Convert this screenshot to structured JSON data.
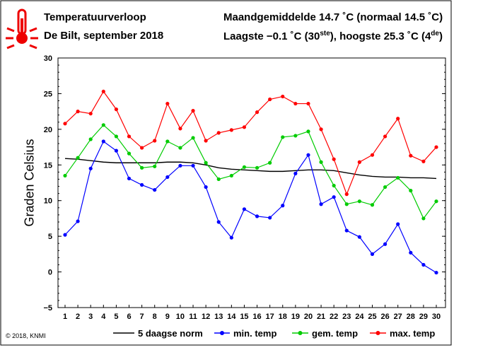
{
  "header": {
    "title": "Temperatuurverloop",
    "subtitle": "De Bilt, september 2018",
    "stats_line1": "Maandgemiddelde 14.7 ˚C (normaal 14.5 ˚C)",
    "stats_line2_prefix": "Laagste −0.1 ˚C (30",
    "stats_line2_sup1": "ste",
    "stats_line2_mid": "), hoogste 25.3 ˚C (4",
    "stats_line2_sup2": "de",
    "stats_line2_suffix": ")"
  },
  "copyright": "© 2018, KNMI",
  "icon": "thermometer-icon",
  "colors": {
    "min": "#0000ff",
    "gem": "#00cc00",
    "max": "#ff0000",
    "norm": "#000000"
  },
  "chart_data": {
    "type": "line",
    "ylabel": "Graden Celsius",
    "ylim": [
      -5,
      30
    ],
    "yticks": [
      -5,
      0,
      5,
      10,
      15,
      20,
      25,
      30
    ],
    "x": [
      1,
      2,
      3,
      4,
      5,
      6,
      7,
      8,
      9,
      10,
      11,
      12,
      13,
      14,
      15,
      16,
      17,
      18,
      19,
      20,
      21,
      22,
      23,
      24,
      25,
      26,
      27,
      28,
      29,
      30
    ],
    "series": [
      {
        "name": "5 daagse norm",
        "key": "norm",
        "markers": false,
        "values": [
          15.9,
          15.8,
          15.6,
          15.4,
          15.3,
          15.3,
          15.3,
          15.3,
          15.4,
          15.4,
          15.3,
          15.0,
          14.6,
          14.4,
          14.3,
          14.2,
          14.1,
          14.1,
          14.2,
          14.3,
          14.3,
          14.2,
          13.9,
          13.6,
          13.4,
          13.3,
          13.3,
          13.2,
          13.2,
          13.1
        ]
      },
      {
        "name": "min. temp",
        "key": "min",
        "markers": true,
        "values": [
          5.2,
          7.1,
          14.5,
          18.3,
          17.0,
          13.1,
          12.2,
          11.5,
          13.3,
          14.9,
          14.9,
          11.9,
          7.0,
          4.8,
          8.8,
          7.8,
          7.6,
          9.3,
          13.8,
          16.4,
          9.5,
          10.5,
          5.8,
          4.9,
          2.5,
          3.9,
          6.7,
          2.7,
          1.0,
          -0.1
        ]
      },
      {
        "name": "gem. temp",
        "key": "gem",
        "markers": true,
        "values": [
          13.5,
          16.0,
          18.6,
          20.6,
          19.0,
          16.6,
          14.6,
          14.8,
          18.3,
          17.4,
          18.8,
          15.3,
          13.0,
          13.5,
          14.7,
          14.6,
          15.3,
          18.9,
          19.1,
          19.7,
          15.4,
          12.1,
          9.5,
          9.9,
          9.4,
          11.9,
          13.2,
          11.4,
          7.5,
          9.9
        ]
      },
      {
        "name": "max. temp",
        "key": "max",
        "markers": true,
        "values": [
          20.8,
          22.5,
          22.2,
          25.3,
          22.8,
          19.0,
          17.4,
          18.4,
          23.6,
          20.1,
          22.6,
          18.4,
          19.5,
          19.9,
          20.3,
          22.4,
          24.2,
          24.6,
          23.6,
          23.6,
          20.0,
          15.8,
          10.9,
          15.4,
          16.4,
          19.0,
          21.5,
          16.3,
          15.5,
          17.5
        ]
      }
    ],
    "legend_placement": "bottom"
  }
}
